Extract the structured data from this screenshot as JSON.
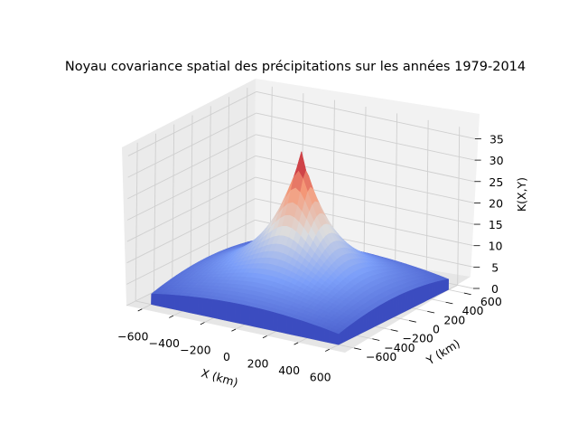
{
  "chart_data": {
    "type": "surface3d",
    "title": "Noyau covariance spatial des précipitations sur les années 1979-2014",
    "xlabel": "X (km)",
    "ylabel": "Y (km)",
    "zlabel": "K(X,Y)",
    "xticks": [
      "−600",
      "−400",
      "−200",
      "0",
      "200",
      "400",
      "600"
    ],
    "yticks": [
      "−600",
      "−400",
      "−200",
      "0",
      "200",
      "400",
      "600"
    ],
    "zticks": [
      "0",
      "5",
      "10",
      "15",
      "20",
      "25",
      "30",
      "35"
    ],
    "xlim": [
      -700,
      700
    ],
    "ylim": [
      -700,
      700
    ],
    "zlim": [
      0,
      37
    ],
    "peak": {
      "x": 0,
      "y": 0,
      "z": 34
    },
    "edge_value": 5,
    "colormap": "coolwarm",
    "colors": {
      "low": "#3b4cc0",
      "mid": "#dddddd",
      "high": "#b40426"
    }
  }
}
